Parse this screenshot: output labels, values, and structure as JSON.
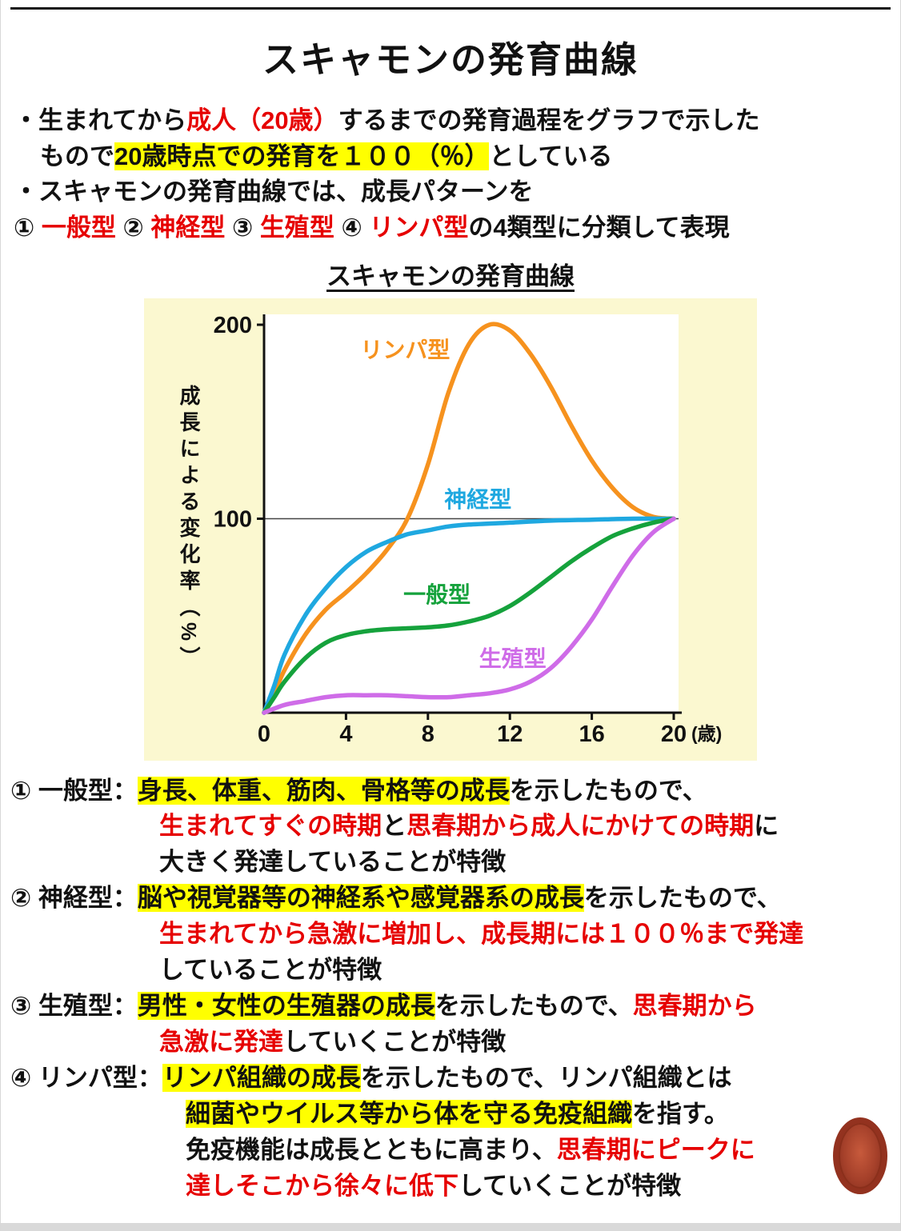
{
  "page": {
    "title": "スキャモンの発育曲線"
  },
  "intro": {
    "bullet1_line1": [
      {
        "t": "・生まれてから"
      },
      {
        "t": "成人（20歳）",
        "c": "red"
      },
      {
        "t": "するまでの発育過程をグラフで示した"
      }
    ],
    "bullet1_line2": [
      {
        "t": "もので"
      },
      {
        "t": "20歳時点での発育を１００（％）",
        "c": "hl"
      },
      {
        "t": "としている"
      }
    ],
    "bullet2_line1": [
      {
        "t": "・スキャモンの発育曲線では、成長パターンを"
      }
    ],
    "bullet2_line2": [
      {
        "t": "① "
      },
      {
        "t": "一般型",
        "c": "red"
      },
      {
        "t": " ② "
      },
      {
        "t": "神経型",
        "c": "red"
      },
      {
        "t": " ③ "
      },
      {
        "t": "生殖型",
        "c": "red"
      },
      {
        "t": " ④ "
      },
      {
        "t": "リンパ型",
        "c": "red"
      },
      {
        "t": "の4類型に分類して表現"
      }
    ]
  },
  "chart": {
    "title": "スキャモンの発育曲線"
  },
  "chart_data": {
    "type": "line",
    "title": "スキャモンの発育曲線",
    "ylabel": "成長による変化率（%）",
    "xlabel_unit": "(歳)",
    "x_ticks": [
      0,
      4,
      8,
      12,
      16,
      20
    ],
    "y_ticks": [
      100,
      200
    ],
    "xlim": [
      0,
      20
    ],
    "ylim": [
      0,
      205
    ],
    "grid": "horizontal reference line at y=100",
    "legend_position": "inline-labels",
    "series": [
      {
        "key": "lymphoid",
        "name": "リンパ型",
        "color": "#f6921e",
        "points": [
          [
            0,
            0
          ],
          [
            0.5,
            10
          ],
          [
            1,
            22
          ],
          [
            2,
            40
          ],
          [
            3,
            53
          ],
          [
            4,
            62
          ],
          [
            5,
            72
          ],
          [
            6,
            84
          ],
          [
            7,
            100
          ],
          [
            8,
            128
          ],
          [
            9,
            165
          ],
          [
            10,
            190
          ],
          [
            11,
            200
          ],
          [
            12,
            197
          ],
          [
            13,
            185
          ],
          [
            14,
            168
          ],
          [
            15,
            148
          ],
          [
            16,
            130
          ],
          [
            17,
            116
          ],
          [
            18,
            106
          ],
          [
            19,
            101
          ],
          [
            20,
            100
          ]
        ]
      },
      {
        "key": "neural",
        "name": "神経型",
        "color": "#1fa8e0",
        "points": [
          [
            0,
            0
          ],
          [
            0.5,
            14
          ],
          [
            1,
            30
          ],
          [
            2,
            50
          ],
          [
            3,
            64
          ],
          [
            4,
            75
          ],
          [
            5,
            83
          ],
          [
            6,
            88
          ],
          [
            7,
            92
          ],
          [
            8,
            94
          ],
          [
            9,
            96
          ],
          [
            10,
            97
          ],
          [
            12,
            98
          ],
          [
            14,
            99
          ],
          [
            16,
            99.5
          ],
          [
            18,
            100
          ],
          [
            20,
            100
          ]
        ]
      },
      {
        "key": "general",
        "name": "一般型",
        "color": "#15a23c",
        "points": [
          [
            0,
            0
          ],
          [
            0.5,
            8
          ],
          [
            1,
            16
          ],
          [
            2,
            28
          ],
          [
            3,
            36
          ],
          [
            4,
            40
          ],
          [
            5,
            42
          ],
          [
            6,
            43
          ],
          [
            7,
            43.5
          ],
          [
            8,
            44
          ],
          [
            9,
            45
          ],
          [
            10,
            47
          ],
          [
            11,
            50
          ],
          [
            12,
            55
          ],
          [
            13,
            62
          ],
          [
            14,
            70
          ],
          [
            15,
            78
          ],
          [
            16,
            85
          ],
          [
            17,
            91
          ],
          [
            18,
            95
          ],
          [
            19,
            98
          ],
          [
            20,
            100
          ]
        ]
      },
      {
        "key": "genital",
        "name": "生殖型",
        "color": "#cf6ce8",
        "points": [
          [
            0,
            0
          ],
          [
            1,
            4
          ],
          [
            2,
            6
          ],
          [
            3,
            8
          ],
          [
            4,
            9
          ],
          [
            5,
            9
          ],
          [
            6,
            9
          ],
          [
            7,
            8.5
          ],
          [
            8,
            8
          ],
          [
            9,
            8
          ],
          [
            10,
            9
          ],
          [
            11,
            10
          ],
          [
            12,
            12
          ],
          [
            13,
            16
          ],
          [
            14,
            23
          ],
          [
            15,
            34
          ],
          [
            16,
            48
          ],
          [
            17,
            65
          ],
          [
            18,
            81
          ],
          [
            19,
            93
          ],
          [
            20,
            100
          ]
        ]
      }
    ],
    "labels": [
      {
        "key": "lymphoid",
        "text": "リンパ型",
        "x": 4.7,
        "y": 183,
        "color": "#f6921e"
      },
      {
        "key": "neural",
        "text": "神経型",
        "x": 8.8,
        "y": 106,
        "color": "#1fa8e0"
      },
      {
        "key": "general",
        "text": "一般型",
        "x": 6.8,
        "y": 57,
        "color": "#15a23c"
      },
      {
        "key": "genital",
        "text": "生殖型",
        "x": 10.5,
        "y": 24,
        "color": "#cf6ce8"
      }
    ]
  },
  "sections": [
    {
      "lines": [
        {
          "segs": [
            {
              "t": "① 一般型："
            },
            {
              "t": "身長、体重、筋肉、骨格等の成長",
              "c": "hl"
            },
            {
              "t": "を示したもので、"
            }
          ]
        },
        {
          "segs": [
            {
              "t": "生まれてすぐの時期",
              "c": "red"
            },
            {
              "t": "と"
            },
            {
              "t": "思春期から成人にかけての時期",
              "c": "red"
            },
            {
              "t": "に"
            }
          ]
        },
        {
          "segs": [
            {
              "t": "大きく発達していることが特徴"
            }
          ]
        }
      ]
    },
    {
      "lines": [
        {
          "segs": [
            {
              "t": "② 神経型："
            },
            {
              "t": "脳や視覚器等の神経系や感覚器系の成長",
              "c": "hl"
            },
            {
              "t": "を示したもので、"
            }
          ]
        },
        {
          "segs": [
            {
              "t": "生まれてから急激に増加し、成長期には１００％まで発達",
              "c": "red"
            }
          ]
        },
        {
          "segs": [
            {
              "t": "していることが特徴"
            }
          ]
        }
      ]
    },
    {
      "lines": [
        {
          "segs": [
            {
              "t": "③ 生殖型："
            },
            {
              "t": "男性・女性の生殖器の成長",
              "c": "hl"
            },
            {
              "t": "を示したもので、"
            },
            {
              "t": "思春期から",
              "c": "red"
            }
          ]
        },
        {
          "segs": [
            {
              "t": "急激に発達",
              "c": "red"
            },
            {
              "t": "していくことが特徴"
            }
          ]
        }
      ]
    },
    {
      "lines": [
        {
          "segs": [
            {
              "t": "④ リンパ型："
            },
            {
              "t": "リンパ組織の成長",
              "c": "hl"
            },
            {
              "t": "を示したもので、リンパ組織とは"
            }
          ]
        },
        {
          "segs": [
            {
              "t": "細菌やウイルス等から体を守る免疫組織",
              "c": "hl"
            },
            {
              "t": "を指す。"
            }
          ]
        },
        {
          "segs": [
            {
              "t": "免疫機能は成長とともに高まり、"
            },
            {
              "t": "思春期にピークに",
              "c": "red"
            }
          ]
        },
        {
          "segs": [
            {
              "t": "達しそこから徐々に低下",
              "c": "red"
            },
            {
              "t": "していくことが特徴"
            }
          ]
        }
      ]
    }
  ]
}
